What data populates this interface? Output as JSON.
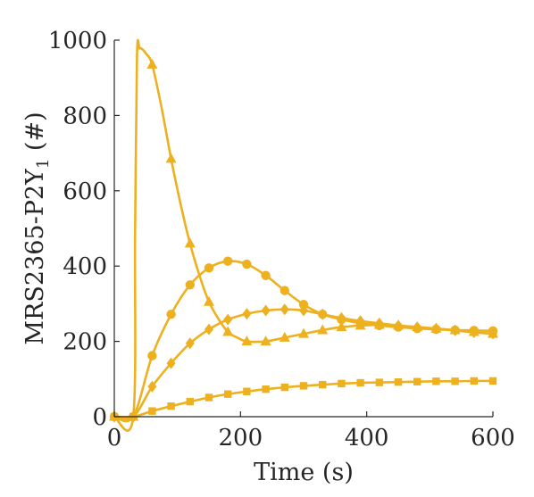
{
  "chart_data": {
    "type": "line",
    "xlabel": "Time (s)",
    "ylabel": "MRS2365-P2Y1 (#)",
    "ylabel_main": "MRS2365-P2Y",
    "ylabel_sub": "1",
    "ylabel_tail": " (#)",
    "xlim": [
      0,
      600
    ],
    "ylim": [
      0,
      1000
    ],
    "xticks": [
      0,
      200,
      400,
      600
    ],
    "yticks": [
      0,
      200,
      400,
      600,
      800,
      1000
    ],
    "grid": false,
    "legend": "none",
    "color": "#EDB120",
    "series": [
      {
        "marker": "triangle",
        "x": [
          0,
          30,
          33,
          36,
          40,
          45,
          50,
          60,
          75,
          90,
          105,
          120,
          135,
          150,
          165,
          180,
          195,
          210,
          240,
          270,
          300,
          330,
          360,
          390,
          420,
          450,
          480,
          510,
          540,
          570,
          600
        ],
        "y": [
          0,
          0,
          500,
          960,
          978,
          975,
          965,
          935,
          820,
          685,
          565,
          460,
          375,
          305,
          260,
          225,
          210,
          200,
          200,
          210,
          220,
          230,
          238,
          242,
          244,
          242,
          238,
          234,
          230,
          225,
          220
        ]
      },
      {
        "marker": "circle",
        "x": [
          0,
          30,
          60,
          90,
          120,
          150,
          180,
          210,
          240,
          270,
          300,
          330,
          360,
          390,
          420,
          450,
          480,
          510,
          540,
          570,
          600
        ],
        "y": [
          0,
          0,
          162,
          272,
          350,
          395,
          413,
          405,
          375,
          335,
          298,
          272,
          258,
          248,
          242,
          238,
          234,
          232,
          230,
          229,
          228
        ]
      },
      {
        "marker": "diamond",
        "x": [
          0,
          30,
          60,
          90,
          120,
          150,
          180,
          210,
          240,
          270,
          300,
          330,
          360,
          390,
          420,
          450,
          480,
          510,
          540,
          570,
          600
        ],
        "y": [
          0,
          0,
          80,
          142,
          195,
          232,
          258,
          273,
          282,
          285,
          282,
          272,
          262,
          254,
          248,
          242,
          238,
          234,
          229,
          224,
          220
        ]
      },
      {
        "marker": "square",
        "x": [
          0,
          30,
          60,
          90,
          120,
          150,
          180,
          210,
          240,
          270,
          300,
          330,
          360,
          390,
          420,
          450,
          480,
          510,
          540,
          570,
          600
        ],
        "y": [
          0,
          0,
          15,
          28,
          40,
          51,
          60,
          67,
          73,
          78,
          82,
          85,
          88,
          90,
          91,
          92,
          93,
          94,
          94,
          95,
          95
        ]
      }
    ]
  }
}
